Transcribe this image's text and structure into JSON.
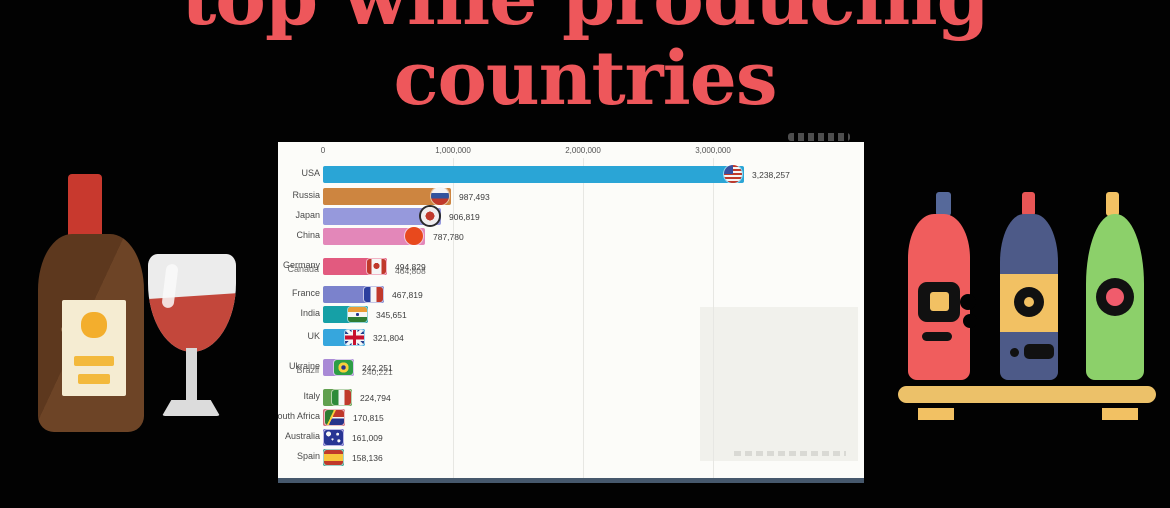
{
  "title": {
    "line1": "top wine producing",
    "line2": "countries"
  },
  "colors": {
    "background": "#020202",
    "title": "#ee575b",
    "panel_bg": "#fcfcf9",
    "footer_strip": "#46586c"
  },
  "icons": {
    "left_illustration": "wine-bottle-and-glass-icon",
    "right_illustration": "wine-shelf-bottles-icon",
    "cropped_text": "cropped-gray-text-smudge",
    "watermark": "watermark-smudge"
  },
  "chart": {
    "axis_ticks": [
      {
        "value": 0,
        "label": "0"
      },
      {
        "value": 1000000,
        "label": "1,000,000"
      },
      {
        "value": 2000000,
        "label": "2,000,000"
      },
      {
        "value": 3000000,
        "label": "3,000,000"
      }
    ],
    "rows": [
      {
        "label": "USA",
        "value": 3238257,
        "value_label": "3,238,257",
        "color": "#2aa5d6",
        "flag": "usa",
        "round": true
      },
      {
        "label": "Russia",
        "value": 987493,
        "value_label": "987,493",
        "color": "#cd8540",
        "flag": "russia",
        "round": true
      },
      {
        "label": "Japan",
        "value": 906819,
        "value_label": "906,819",
        "color": "#9699dc",
        "flag": "japan",
        "round": true
      },
      {
        "label": "China",
        "value": 787780,
        "value_label": "787,780",
        "color": "#e387b9",
        "flag": "china",
        "round": true
      },
      {
        "label": "Germany",
        "label2": "Canada",
        "value": 494829,
        "value_label": "494,829",
        "value_label2": "464,808",
        "color": "#e25a7f",
        "flag": "canada"
      },
      {
        "label": "France",
        "value": 467819,
        "value_label": "467,819",
        "color": "#7b82cc",
        "flag": "france"
      },
      {
        "label": "India",
        "value": 345651,
        "value_label": "345,651",
        "color": "#16a0a6",
        "flag": "india"
      },
      {
        "label": "UK",
        "value": 321804,
        "value_label": "321,804",
        "color": "#36a6dd",
        "flag": "uk"
      },
      {
        "label": "Ukraine",
        "label2": "Brazil",
        "value": 242251,
        "value_label": "242,251",
        "value_label2": "240,221",
        "color": "#a98ad6",
        "flag": "brazil"
      },
      {
        "label": "Italy",
        "value": 224794,
        "value_label": "224,794",
        "color": "#61a04f",
        "flag": "italy"
      },
      {
        "label": "South Africa",
        "value": 170815,
        "value_label": "170,815",
        "color": "#d56b79",
        "flag": "south-africa"
      },
      {
        "label": "Australia",
        "value": 161009,
        "value_label": "161,009",
        "color": "#6b63c8",
        "flag": "australia"
      },
      {
        "label": "Spain",
        "value": 158136,
        "value_label": "158,136",
        "color": "#2f9e8a",
        "flag": "spain"
      }
    ]
  },
  "chart_data": {
    "type": "bar",
    "orientation": "horizontal",
    "title": "top wine producing countries",
    "categories": [
      "USA",
      "Russia",
      "Japan",
      "China",
      "Germany/Canada",
      "France",
      "India",
      "UK",
      "Ukraine/Brazil",
      "Italy",
      "South Africa",
      "Australia",
      "Spain"
    ],
    "values": [
      3238257,
      987493,
      906819,
      787780,
      494829,
      467819,
      345651,
      321804,
      242251,
      224794,
      170815,
      161009,
      158136
    ],
    "xlabel": "",
    "ylabel": "",
    "xlim": [
      0,
      3500000
    ],
    "x_ticks": [
      0,
      1000000,
      2000000,
      3000000
    ],
    "x_tick_labels": [
      "0",
      "1,000,000",
      "2,000,000",
      "3,000,000"
    ],
    "grid": true,
    "legend": false,
    "note": "bar chart race frame; Germany/Canada and Ukraine/Brazil rows overlap mid-animation"
  }
}
